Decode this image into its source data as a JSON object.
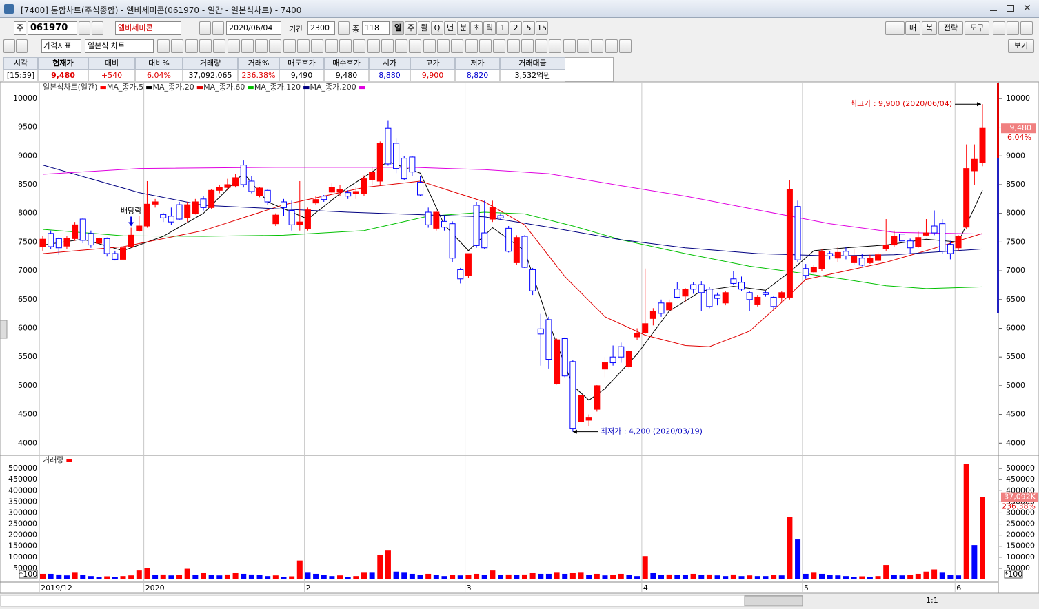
{
  "window": {
    "title": "[7400] 통합차트(주식종합) - 엘비세미콘(061970 - 일간 - 일본식차트) - 7400"
  },
  "toolbar": {
    "code_prefix": "주",
    "code": "061970",
    "name": "엘비세미콘",
    "date": "2020/06/04",
    "period_label": "기간",
    "period": "2300",
    "count_label": "종",
    "count": "118",
    "intervals": [
      "일",
      "주",
      "월",
      "Q",
      "년",
      "분",
      "초",
      "틱",
      "1",
      "2",
      "5",
      "15"
    ],
    "right_buttons": [
      "매",
      "복",
      "전략",
      "도구"
    ],
    "indicator": "가격지표",
    "chart_type": "일본식 차트",
    "view": "보기"
  },
  "quote": {
    "headers": [
      "시각",
      "현재가",
      "대비",
      "대비%",
      "거래량",
      "거래%",
      "매도호가",
      "매수호가",
      "시가",
      "고가",
      "저가",
      "거래대금"
    ],
    "values": [
      "[15:59]",
      "9,480",
      "+540",
      "6.04%",
      "37,092,065",
      "236.38%",
      "9,490",
      "9,480",
      "8,880",
      "9,900",
      "8,820",
      "3,532억원"
    ]
  },
  "scroll": {
    "zoom": "1:1"
  },
  "chart_data": [
    {
      "type": "candlestick",
      "title": "일본식차트(일간)",
      "up_color": "#ff0000",
      "down_color": "#0000ff",
      "categories": [
        "2019/12",
        null,
        null,
        null,
        null,
        null,
        null,
        null,
        null,
        null,
        null,
        null,
        null,
        "2020",
        null,
        null,
        null,
        null,
        null,
        null,
        null,
        null,
        null,
        null,
        null,
        null,
        null,
        null,
        null,
        null,
        null,
        null,
        null,
        "2",
        null,
        null,
        null,
        null,
        null,
        null,
        null,
        null,
        null,
        null,
        null,
        null,
        null,
        null,
        null,
        null,
        null,
        null,
        null,
        "3",
        null,
        null,
        null,
        null,
        null,
        null,
        null,
        null,
        null,
        null,
        null,
        null,
        null,
        null,
        null,
        null,
        null,
        null,
        null,
        null,
        null,
        "4",
        null,
        null,
        null,
        null,
        null,
        null,
        null,
        null,
        null,
        null,
        null,
        null,
        null,
        null,
        null,
        null,
        null,
        null,
        null,
        "5",
        null,
        null,
        null,
        null,
        null,
        null,
        null,
        null,
        null,
        null,
        null,
        null,
        null,
        null,
        null,
        null,
        null,
        null,
        "6",
        null,
        null,
        null
      ],
      "open": [
        7420,
        7650,
        7560,
        7430,
        7560,
        7900,
        7650,
        7480,
        7560,
        7300,
        7200,
        7420,
        7700,
        7780,
        8160,
        7980,
        7950,
        8150,
        7920,
        8000,
        8250,
        8100,
        8400,
        8450,
        8480,
        8840,
        8560,
        8310,
        8400,
        7820,
        8200,
        8050,
        7800,
        7730,
        8180,
        8300,
        8370,
        8370,
        8360,
        8340,
        8340,
        8580,
        8560,
        9480,
        9220,
        8960,
        8980,
        8540,
        8020,
        7740,
        7860,
        7820,
        7020,
        6920,
        8140,
        7660,
        7900,
        7960,
        7740,
        7140,
        7600,
        7020,
        5990,
        6150,
        5040,
        5820,
        5420,
        4380,
        4400,
        4590,
        5290,
        5500,
        5680,
        5340,
        5850,
        5920,
        6170,
        6440,
        6320,
        6680,
        6560,
        6760,
        6760,
        6680,
        6580,
        6440,
        6860,
        6800,
        6620,
        6420,
        6620,
        6540,
        6540,
        6540,
        8120,
        7040,
        6980,
        7040,
        7300,
        7220,
        7340,
        7140,
        7220,
        7140,
        7180,
        7380,
        7450,
        7640,
        7520,
        7420,
        7620,
        7780,
        7820,
        7460,
        7400,
        7760,
        8740,
        8880
      ],
      "high": [
        7600,
        7700,
        7580,
        7600,
        7850,
        7920,
        7700,
        7590,
        7580,
        7350,
        7420,
        7750,
        7950,
        8560,
        8250,
        8010,
        8100,
        8200,
        8200,
        8250,
        8300,
        8420,
        8500,
        8600,
        8680,
        8930,
        8650,
        8460,
        8420,
        8000,
        8250,
        8220,
        8560,
        8100,
        8300,
        8320,
        8520,
        8500,
        8400,
        8450,
        8660,
        8800,
        9250,
        9620,
        9300,
        9000,
        9000,
        8650,
        8100,
        8050,
        7950,
        7860,
        7050,
        7300,
        8200,
        8220,
        8220,
        8000,
        7780,
        7620,
        7620,
        7050,
        6250,
        6200,
        5820,
        5840,
        5450,
        4850,
        4500,
        5010,
        5500,
        5700,
        5750,
        5620,
        6000,
        7040,
        6350,
        6500,
        6500,
        6800,
        6700,
        6800,
        6820,
        6720,
        6620,
        6650,
        6990,
        6900,
        6650,
        6580,
        6650,
        6560,
        6640,
        8580,
        8220,
        7120,
        7100,
        7380,
        7340,
        7420,
        7420,
        7380,
        7300,
        7280,
        7320,
        7900,
        7700,
        7680,
        7560,
        7680,
        7900,
        8050,
        7900,
        7520,
        7620,
        9200,
        9200,
        9900
      ],
      "low": [
        7350,
        7380,
        7280,
        7380,
        7520,
        7480,
        7400,
        7450,
        7250,
        7180,
        7180,
        7400,
        7680,
        7750,
        8100,
        7850,
        7800,
        7880,
        7850,
        7980,
        8050,
        8080,
        8350,
        8400,
        8450,
        8450,
        8350,
        8280,
        8150,
        7780,
        7950,
        7700,
        7700,
        7700,
        8150,
        8200,
        8350,
        8300,
        8250,
        8250,
        8300,
        8500,
        8500,
        8830,
        8700,
        8580,
        8650,
        8300,
        7750,
        7700,
        7700,
        7150,
        6780,
        6880,
        7400,
        7380,
        7850,
        7880,
        7320,
        7100,
        7050,
        6580,
        5350,
        5300,
        5020,
        5150,
        4200,
        4350,
        4300,
        4550,
        5150,
        5350,
        5400,
        5300,
        5800,
        5900,
        6050,
        6200,
        6300,
        6520,
        6450,
        6600,
        6300,
        6350,
        6400,
        6400,
        6760,
        6650,
        6300,
        6380,
        6550,
        6330,
        6460,
        6500,
        7150,
        6860,
        6950,
        7000,
        7200,
        7150,
        7200,
        7100,
        7080,
        7120,
        7160,
        7350,
        7420,
        7480,
        7300,
        7400,
        7600,
        7620,
        7300,
        7200,
        7350,
        7720,
        8500,
        8820
      ],
      "close": [
        7550,
        7420,
        7400,
        7560,
        7800,
        7530,
        7450,
        7560,
        7300,
        7200,
        7400,
        7620,
        7780,
        8160,
        8200,
        7920,
        7850,
        7900,
        8150,
        8200,
        8100,
        8400,
        8450,
        8500,
        8620,
        8500,
        8380,
        8440,
        8200,
        7970,
        8100,
        7800,
        7850,
        8060,
        8240,
        8240,
        8450,
        8420,
        8300,
        8380,
        8600,
        8720,
        9220,
        8860,
        8780,
        8600,
        8720,
        8320,
        7800,
        8020,
        7760,
        7220,
        6860,
        7300,
        7440,
        7400,
        8100,
        7920,
        7340,
        7580,
        7060,
        6650,
        5900,
        5460,
        5800,
        5170,
        4260,
        4830,
        4440,
        5000,
        5400,
        5400,
        5500,
        5600,
        5910,
        6080,
        6300,
        6260,
        6440,
        6540,
        6680,
        6680,
        6620,
        6380,
        6520,
        6620,
        6780,
        6680,
        6500,
        6540,
        6590,
        6380,
        6620,
        8420,
        7190,
        6920,
        7060,
        7340,
        7260,
        7320,
        7260,
        7260,
        7100,
        7220,
        7280,
        7440,
        7600,
        7520,
        7400,
        7580,
        7660,
        7660,
        7340,
        7300,
        7600,
        8780,
        8940,
        9480
      ],
      "series": [
        {
          "name": "MA_종가,5",
          "color": "#000000",
          "x": [
            0,
            5,
            10,
            15,
            20,
            25,
            28,
            33,
            38,
            43,
            47,
            50,
            53,
            56,
            60,
            63,
            66,
            68,
            70,
            74,
            78,
            82,
            86,
            90,
            93,
            96,
            100,
            105,
            110,
            114,
            117
          ],
          "values": [
            7450,
            7550,
            7350,
            7600,
            8000,
            8700,
            8200,
            7900,
            8450,
            8900,
            8700,
            7800,
            7350,
            7750,
            7350,
            6100,
            5000,
            4750,
            4950,
            5550,
            6300,
            6650,
            6730,
            6660,
            6980,
            7350,
            7400,
            7450,
            7550,
            7500,
            8400
          ]
        },
        {
          "name": "MA_종가,20",
          "color": "#e00000",
          "x": [
            0,
            10,
            20,
            30,
            40,
            47,
            55,
            60,
            65,
            70,
            75,
            80,
            83,
            88,
            92,
            95,
            100,
            105,
            110,
            117
          ],
          "values": [
            7300,
            7420,
            7700,
            8150,
            8450,
            8560,
            8200,
            7800,
            6900,
            6200,
            5880,
            5700,
            5680,
            5950,
            6450,
            6850,
            7000,
            7150,
            7350,
            7650
          ]
        },
        {
          "name": "MA_종가,60",
          "color": "#00c000",
          "x": [
            0,
            10,
            20,
            30,
            40,
            48,
            55,
            60,
            66,
            72,
            80,
            88,
            95,
            100,
            105,
            110,
            117
          ],
          "values": [
            7720,
            7610,
            7600,
            7620,
            7700,
            7950,
            8020,
            7990,
            7780,
            7540,
            7300,
            7080,
            6950,
            6850,
            6740,
            6690,
            6720
          ]
        },
        {
          "name": "MA_종가,120",
          "color": "#000080",
          "x": [
            0,
            12,
            20,
            38,
            55,
            63,
            72,
            80,
            89,
            98,
            106,
            117
          ],
          "values": [
            8840,
            8360,
            8140,
            8020,
            7940,
            7760,
            7540,
            7400,
            7300,
            7260,
            7280,
            7380
          ]
        },
        {
          "name": "MA_종가,200",
          "color": "#e000e0",
          "x": [
            0,
            12,
            29,
            46,
            55,
            63,
            72,
            80,
            89,
            98,
            106,
            117
          ],
          "values": [
            8680,
            8780,
            8800,
            8800,
            8760,
            8690,
            8480,
            8300,
            8060,
            7820,
            7670,
            7640
          ]
        }
      ],
      "ylim": [
        3800,
        10250
      ],
      "yticks": [
        4000,
        4500,
        5000,
        5500,
        6000,
        6500,
        7000,
        7500,
        8000,
        8500,
        9000,
        9500,
        10000
      ],
      "current": {
        "value": 9480,
        "label": "9,480",
        "change": "6.04%"
      },
      "annotations": [
        {
          "text": "배당락",
          "x": 11
        },
        {
          "text": "최고가 : 9,900 (2020/06/04)",
          "x": 117,
          "value": 9900
        },
        {
          "text": "최저가 : 4,200 (2020/03/19)",
          "x": 66,
          "value": 4200
        }
      ]
    },
    {
      "type": "bar",
      "title": "거래량",
      "up_color": "#ff0000",
      "down_color": "#0000ff",
      "unit_label": "*100",
      "values": [
        25000,
        25000,
        22000,
        18000,
        30000,
        20000,
        15000,
        12000,
        14000,
        12000,
        15000,
        18000,
        40000,
        50000,
        20000,
        22000,
        18000,
        20000,
        48000,
        20000,
        28000,
        20000,
        18000,
        22000,
        28000,
        25000,
        22000,
        20000,
        15000,
        18000,
        12000,
        14000,
        85000,
        30000,
        25000,
        20000,
        15000,
        18000,
        12000,
        15000,
        30000,
        30000,
        110000,
        130000,
        35000,
        30000,
        25000,
        20000,
        25000,
        20000,
        15000,
        20000,
        18000,
        20000,
        25000,
        20000,
        40000,
        20000,
        22000,
        20000,
        22000,
        28000,
        25000,
        25000,
        30000,
        25000,
        28000,
        30000,
        20000,
        25000,
        18000,
        20000,
        25000,
        20000,
        15000,
        105000,
        28000,
        20000,
        22000,
        20000,
        20000,
        25000,
        20000,
        22000,
        18000,
        15000,
        22000,
        15000,
        18000,
        15000,
        15000,
        20000,
        18000,
        280000,
        180000,
        25000,
        30000,
        25000,
        20000,
        18000,
        15000,
        12000,
        14000,
        12000,
        15000,
        65000,
        20000,
        18000,
        20000,
        25000,
        35000,
        45000,
        30000,
        20000,
        18000,
        520000,
        155000,
        370921
      ],
      "ylim": [
        0,
        550000
      ],
      "yticks": [
        50000,
        100000,
        150000,
        200000,
        250000,
        300000,
        350000,
        400000,
        450000,
        500000
      ],
      "current": {
        "value": 370921,
        "label": "37,092K",
        "ratio": "236.38%"
      }
    }
  ]
}
